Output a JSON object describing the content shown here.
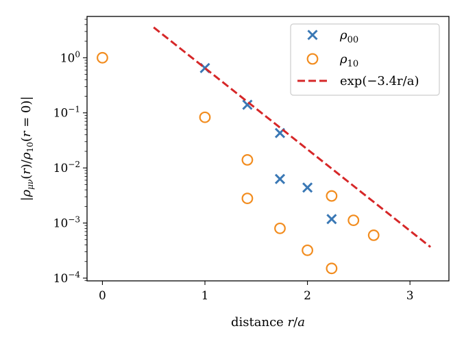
{
  "chart_data": {
    "type": "scatter",
    "title": "",
    "xlabel": "distance r/a",
    "ylabel": "|ρμν(r)/ρ10(r = 0)|",
    "xlim": [
      -0.15,
      3.38
    ],
    "ylim_log10": [
      -4.05,
      0.75
    ],
    "yscale": "log",
    "x_ticks": [
      0,
      1,
      2,
      3
    ],
    "x_tick_labels": [
      "0",
      "1",
      "2",
      "3"
    ],
    "y_ticks": [
      -4,
      -3,
      -2,
      -1,
      0
    ],
    "y_tick_labels": [
      {
        "base": "10",
        "exp": "−4"
      },
      {
        "base": "10",
        "exp": "−3"
      },
      {
        "base": "10",
        "exp": "−2"
      },
      {
        "base": "10",
        "exp": "−1"
      },
      {
        "base": "10",
        "exp": "0"
      }
    ],
    "legend_position": "top-right",
    "series": [
      {
        "name": "ρ00",
        "legend_main": "ρ",
        "legend_sub": "00",
        "marker": "x",
        "color": "#3a78b5",
        "points": [
          {
            "x": 1.0,
            "y": 0.65
          },
          {
            "x": 1.414,
            "y": 0.14
          },
          {
            "x": 1.732,
            "y": 0.043
          },
          {
            "x": 1.732,
            "y": 0.0063
          },
          {
            "x": 2.0,
            "y": 0.0044
          },
          {
            "x": 2.236,
            "y": 0.00118
          }
        ]
      },
      {
        "name": "ρ10",
        "legend_main": "ρ",
        "legend_sub": "10",
        "marker": "o",
        "color": "#f28c1e",
        "points": [
          {
            "x": 0.0,
            "y": 1.0
          },
          {
            "x": 1.0,
            "y": 0.083
          },
          {
            "x": 1.414,
            "y": 0.014
          },
          {
            "x": 1.414,
            "y": 0.0028
          },
          {
            "x": 1.732,
            "y": 0.0008
          },
          {
            "x": 2.0,
            "y": 0.00032
          },
          {
            "x": 2.236,
            "y": 0.0031
          },
          {
            "x": 2.236,
            "y": 0.00015
          },
          {
            "x": 2.449,
            "y": 0.00112
          },
          {
            "x": 2.646,
            "y": 0.0006
          }
        ]
      },
      {
        "name": "exp(−3.4r/a)",
        "legend_text": "exp(−3.4r/a)",
        "marker": "dashed-line",
        "color": "#d62728",
        "amplitude": 19.5,
        "rate": -3.4,
        "x_range": [
          0.5,
          3.2
        ]
      }
    ]
  }
}
